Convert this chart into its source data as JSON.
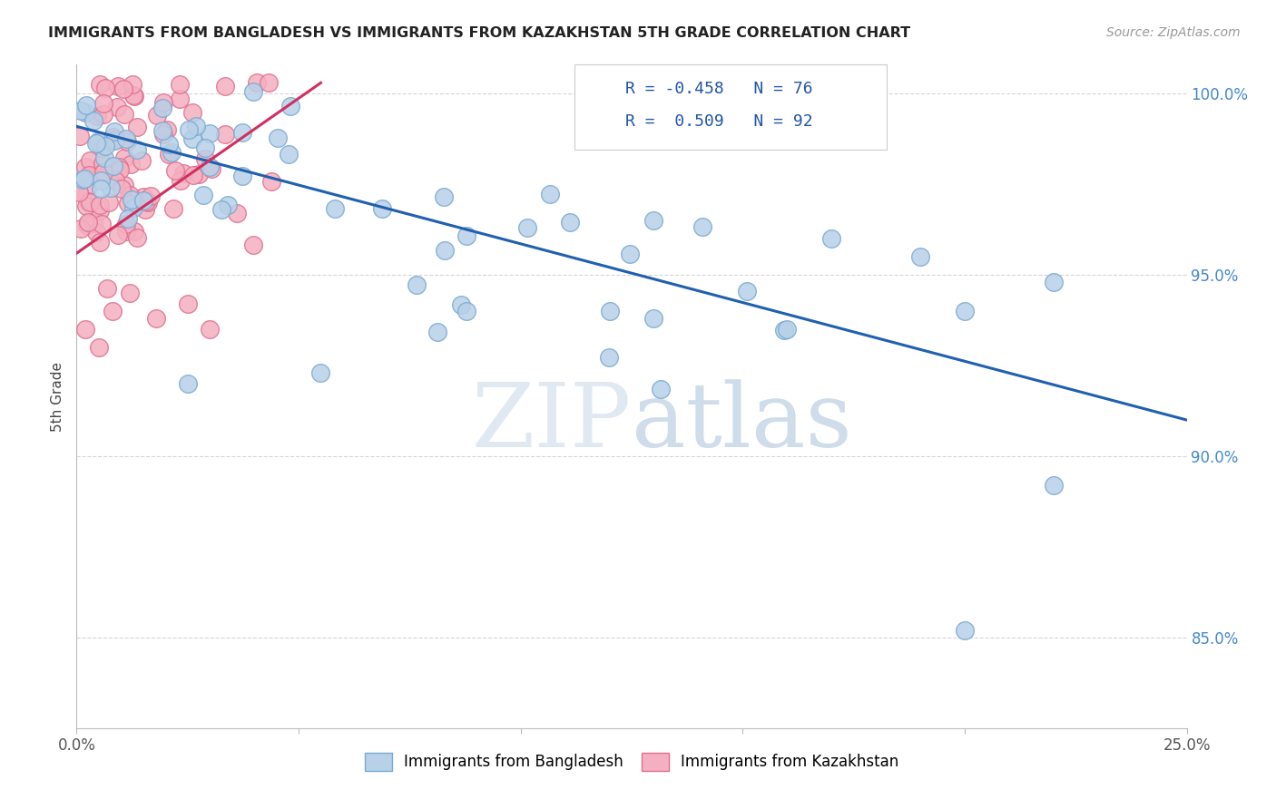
{
  "title": "IMMIGRANTS FROM BANGLADESH VS IMMIGRANTS FROM KAZAKHSTAN 5TH GRADE CORRELATION CHART",
  "source": "Source: ZipAtlas.com",
  "ylabel": "5th Grade",
  "ytick_labels": [
    "100.0%",
    "95.0%",
    "90.0%",
    "85.0%"
  ],
  "ytick_values": [
    1.0,
    0.95,
    0.9,
    0.85
  ],
  "xmin": 0.0,
  "xmax": 0.25,
  "ymin": 0.825,
  "ymax": 1.008,
  "legend_blue_r": "R = -0.458",
  "legend_blue_n": "N = 76",
  "legend_pink_r": "R =  0.509",
  "legend_pink_n": "N = 92",
  "legend_label_blue": "Immigrants from Bangladesh",
  "legend_label_pink": "Immigrants from Kazakhstan",
  "color_blue_face": "#b8d0e8",
  "color_blue_edge": "#7aaad0",
  "color_pink_face": "#f4b0c0",
  "color_pink_edge": "#e07090",
  "color_blue_line": "#2060b0",
  "color_pink_line": "#d03060",
  "blue_trend_x0": 0.0,
  "blue_trend_x1": 0.25,
  "blue_trend_y0": 0.991,
  "blue_trend_y1": 0.91,
  "pink_trend_x0": 0.0,
  "pink_trend_x1": 0.055,
  "pink_trend_y0": 0.956,
  "pink_trend_y1": 1.003,
  "watermark_zip": "ZIP",
  "watermark_atlas": "atlas",
  "grid_color": "#cccccc",
  "title_color": "#222222",
  "source_color": "#999999",
  "ylabel_color": "#444444",
  "yticklabel_color": "#4488cc",
  "xtick_labels": [
    "0.0%",
    "",
    "",
    "",
    "",
    "25.0%"
  ],
  "xtick_positions": [
    0.0,
    0.05,
    0.1,
    0.15,
    0.2,
    0.25
  ],
  "marker_size": 200
}
